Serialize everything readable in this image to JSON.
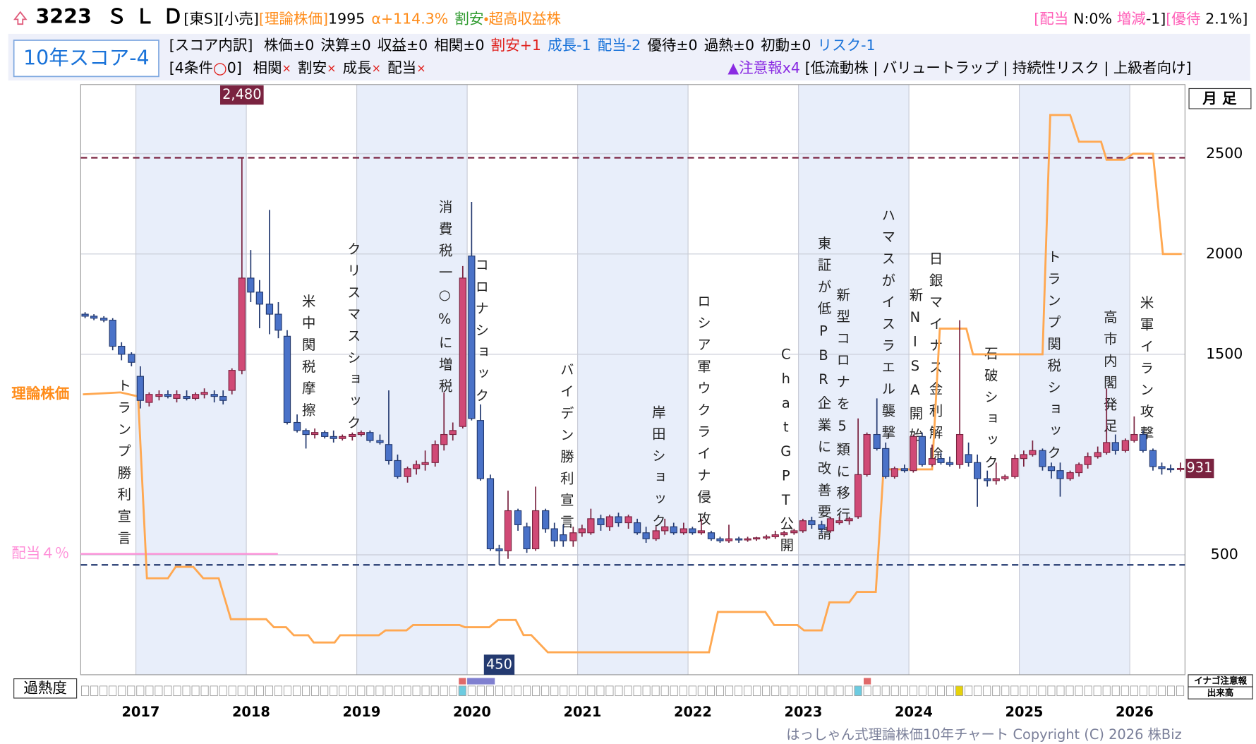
{
  "header": {
    "code": "3223",
    "name": "ＳＬＤ",
    "market": "[東S][小売]",
    "theory_label": "[理論株価]",
    "theory_price": 1995,
    "alpha": "α+114.3%",
    "tag_cheap": "割安",
    "tag_profit": "・超高収益株",
    "dividend_label": "[配当",
    "dividend_value": "N:0%",
    "change_label": "増減",
    "change_value": "-1]",
    "yutai_label": "[優待",
    "yutai_value": "2.1%]"
  },
  "score": {
    "title": "10年スコア-4",
    "breakdown_label": "[スコア内訳]",
    "items": [
      {
        "text": "株価±0",
        "color": "#000000"
      },
      {
        "text": "決算±0",
        "color": "#000000"
      },
      {
        "text": "収益±0",
        "color": "#000000"
      },
      {
        "text": "相関±0",
        "color": "#000000"
      },
      {
        "text": "割安+1",
        "color": "#e0201c"
      },
      {
        "text": "成長-1",
        "color": "#1a73d9"
      },
      {
        "text": "配当-2",
        "color": "#1a73d9"
      },
      {
        "text": "優待±0",
        "color": "#000000"
      },
      {
        "text": "過熱±0",
        "color": "#000000"
      },
      {
        "text": "初動±0",
        "color": "#000000"
      },
      {
        "text": "リスク-1",
        "color": "#1a73d9"
      }
    ]
  },
  "conditions": {
    "label": "[4条件",
    "mark": "○",
    "count": "0]",
    "items": [
      {
        "name": "相関",
        "mark": "×"
      },
      {
        "name": "割安",
        "mark": "×"
      },
      {
        "name": "成長",
        "mark": "×"
      },
      {
        "name": "配当",
        "mark": "×"
      }
    ]
  },
  "warning": {
    "label": "▲注意報x4",
    "tags": "[低流動株 | バリュートラップ | 持続性リスク | 上級者向け]"
  },
  "chart_data": {
    "type": "candlestick",
    "period_label": "月 足",
    "overheat_label": "過熱度",
    "side_labels": [
      "イナゴ注意報",
      "出来高"
    ],
    "xlim": [
      2016.5,
      2026.5
    ],
    "ylim": [
      -98,
      2845
    ],
    "xticks": [
      2017,
      2018,
      2019,
      2020,
      2021,
      2022,
      2023,
      2024,
      2025,
      2026
    ],
    "yticks": [
      500,
      1500,
      2000,
      2500
    ],
    "up_color": "#d04a76",
    "down_color": "#4a72c8",
    "high_line": {
      "value": 2480,
      "label": "2,480"
    },
    "low_line": 450,
    "dividend_line": {
      "label": "配当４％",
      "value": 505,
      "color": "#ff8ed8"
    },
    "theory": {
      "name": "理論株価",
      "color": "#ffa851",
      "x": [
        2016.52,
        2016.86,
        2017.02,
        2017.1,
        2017.29,
        2017.36,
        2017.52,
        2017.61,
        2017.75,
        2017.86,
        2018.18,
        2018.25,
        2018.36,
        2018.43,
        2018.56,
        2018.61,
        2018.8,
        2018.85,
        2019.2,
        2019.26,
        2019.45,
        2019.51,
        2019.93,
        2019.98,
        2020.2,
        2020.28,
        2020.44,
        2020.51,
        2020.58,
        2020.73,
        2022.19,
        2022.27,
        2022.7,
        2022.78,
        2022.99,
        2023.05,
        2023.21,
        2023.28,
        2023.46,
        2023.53,
        2023.7,
        2023.77,
        2024.21,
        2024.28,
        2024.52,
        2024.58,
        2025.21,
        2025.28,
        2025.46,
        2025.54,
        2025.74,
        2025.79,
        2025.95,
        2026.03,
        2026.21,
        2026.3,
        2026.47
      ],
      "values": [
        1300,
        1310,
        1290,
        383,
        383,
        440,
        440,
        383,
        383,
        179,
        179,
        139,
        139,
        99,
        99,
        63,
        63,
        99,
        99,
        123,
        123,
        150,
        150,
        139,
        139,
        175,
        175,
        100,
        100,
        14,
        14,
        215,
        215,
        150,
        150,
        123,
        123,
        263,
        263,
        315,
        315,
        926,
        926,
        1628,
        1628,
        1500,
        1500,
        2693,
        2693,
        2560,
        2560,
        2470,
        2470,
        2500,
        2500,
        2000,
        2000
      ]
    },
    "events": [
      {
        "text": "トランプ勝利宣言",
        "x": 2016.88
      },
      {
        "text": "米中関税摩擦",
        "x": 2018.55
      },
      {
        "text": "クリスマスショック",
        "x": 2018.96
      },
      {
        "text": "消費税一○%に増税",
        "x": 2019.79
      },
      {
        "text": "コロナショック",
        "x": 2020.12
      },
      {
        "text": "バイデン勝利宣言",
        "x": 2020.89
      },
      {
        "text": "岸田ショック",
        "x": 2021.72
      },
      {
        "text": "ロシア軍ウクライナ侵攻",
        "x": 2022.13
      },
      {
        "text": "ChatGPT公開",
        "x": 2022.88
      },
      {
        "text": "東証が低PBR企業に改善要請",
        "x": 2023.22
      },
      {
        "text": "新型コロナを5類に移行",
        "x": 2023.39
      },
      {
        "text": "ハマスがイスラエル襲撃",
        "x": 2023.8
      },
      {
        "text": "新NISA開始",
        "x": 2024.05
      },
      {
        "text": "日銀マイナス金利解除",
        "x": 2024.23
      },
      {
        "text": "石破ショック",
        "x": 2024.73
      },
      {
        "text": "トランプ関税ショック",
        "x": 2025.3
      },
      {
        "text": "高市内閣発足",
        "x": 2025.81
      },
      {
        "text": "米軍イラン攻撃",
        "x": 2026.14
      }
    ],
    "candles": [
      {
        "x": 2016.54,
        "o": 1700,
        "h": 1710,
        "l": 1680,
        "c": 1690
      },
      {
        "x": 2016.62,
        "o": 1690,
        "h": 1700,
        "l": 1670,
        "c": 1680
      },
      {
        "x": 2016.71,
        "o": 1680,
        "h": 1690,
        "l": 1660,
        "c": 1670
      },
      {
        "x": 2016.79,
        "o": 1670,
        "h": 1680,
        "l": 1520,
        "c": 1540
      },
      {
        "x": 2016.87,
        "o": 1540,
        "h": 1560,
        "l": 1470,
        "c": 1500
      },
      {
        "x": 2016.96,
        "o": 1500,
        "h": 1510,
        "l": 1440,
        "c": 1460
      },
      {
        "x": 2017.04,
        "o": 1390,
        "h": 1440,
        "l": 1230,
        "c": 1270
      },
      {
        "x": 2017.12,
        "o": 1260,
        "h": 1310,
        "l": 1240,
        "c": 1300
      },
      {
        "x": 2017.21,
        "o": 1290,
        "h": 1320,
        "l": 1270,
        "c": 1300
      },
      {
        "x": 2017.29,
        "o": 1300,
        "h": 1320,
        "l": 1280,
        "c": 1290
      },
      {
        "x": 2017.37,
        "o": 1280,
        "h": 1320,
        "l": 1260,
        "c": 1300
      },
      {
        "x": 2017.46,
        "o": 1290,
        "h": 1320,
        "l": 1270,
        "c": 1280
      },
      {
        "x": 2017.54,
        "o": 1280,
        "h": 1310,
        "l": 1270,
        "c": 1300
      },
      {
        "x": 2017.62,
        "o": 1300,
        "h": 1330,
        "l": 1280,
        "c": 1310
      },
      {
        "x": 2017.71,
        "o": 1300,
        "h": 1320,
        "l": 1260,
        "c": 1290
      },
      {
        "x": 2017.79,
        "o": 1290,
        "h": 1320,
        "l": 1250,
        "c": 1270
      },
      {
        "x": 2017.87,
        "o": 1320,
        "h": 1430,
        "l": 1300,
        "c": 1420
      },
      {
        "x": 2017.96,
        "o": 1420,
        "h": 2480,
        "l": 1400,
        "c": 1880
      },
      {
        "x": 2018.04,
        "o": 1880,
        "h": 2020,
        "l": 1760,
        "c": 1810
      },
      {
        "x": 2018.12,
        "o": 1810,
        "h": 1870,
        "l": 1630,
        "c": 1750
      },
      {
        "x": 2018.21,
        "o": 1750,
        "h": 2220,
        "l": 1600,
        "c": 1700
      },
      {
        "x": 2018.29,
        "o": 1700,
        "h": 1760,
        "l": 1580,
        "c": 1620
      },
      {
        "x": 2018.37,
        "o": 1590,
        "h": 1620,
        "l": 1150,
        "c": 1160
      },
      {
        "x": 2018.46,
        "o": 1160,
        "h": 1200,
        "l": 1110,
        "c": 1120
      },
      {
        "x": 2018.54,
        "o": 1120,
        "h": 1130,
        "l": 1030,
        "c": 1100
      },
      {
        "x": 2018.62,
        "o": 1100,
        "h": 1130,
        "l": 1080,
        "c": 1110
      },
      {
        "x": 2018.71,
        "o": 1110,
        "h": 1120,
        "l": 1080,
        "c": 1090
      },
      {
        "x": 2018.79,
        "o": 1090,
        "h": 1120,
        "l": 1060,
        "c": 1080
      },
      {
        "x": 2018.87,
        "o": 1080,
        "h": 1100,
        "l": 1070,
        "c": 1090
      },
      {
        "x": 2018.96,
        "o": 1090,
        "h": 1110,
        "l": 1070,
        "c": 1100
      },
      {
        "x": 2019.04,
        "o": 1100,
        "h": 1120,
        "l": 1090,
        "c": 1110
      },
      {
        "x": 2019.12,
        "o": 1110,
        "h": 1120,
        "l": 1060,
        "c": 1070
      },
      {
        "x": 2019.21,
        "o": 1070,
        "h": 1100,
        "l": 1050,
        "c": 1060
      },
      {
        "x": 2019.29,
        "o": 1050,
        "h": 1320,
        "l": 950,
        "c": 970
      },
      {
        "x": 2019.37,
        "o": 970,
        "h": 1000,
        "l": 880,
        "c": 890
      },
      {
        "x": 2019.46,
        "o": 890,
        "h": 940,
        "l": 860,
        "c": 930
      },
      {
        "x": 2019.54,
        "o": 930,
        "h": 970,
        "l": 900,
        "c": 950
      },
      {
        "x": 2019.62,
        "o": 950,
        "h": 1020,
        "l": 920,
        "c": 960
      },
      {
        "x": 2019.71,
        "o": 960,
        "h": 1070,
        "l": 940,
        "c": 1050
      },
      {
        "x": 2019.79,
        "o": 1050,
        "h": 1310,
        "l": 1020,
        "c": 1100
      },
      {
        "x": 2019.87,
        "o": 1100,
        "h": 1160,
        "l": 1070,
        "c": 1120
      },
      {
        "x": 2019.96,
        "o": 1140,
        "h": 1940,
        "l": 1130,
        "c": 1880
      },
      {
        "x": 2020.04,
        "o": 1990,
        "h": 2260,
        "l": 1170,
        "c": 1180
      },
      {
        "x": 2020.12,
        "o": 1170,
        "h": 1250,
        "l": 870,
        "c": 880
      },
      {
        "x": 2020.21,
        "o": 880,
        "h": 900,
        "l": 520,
        "c": 530
      },
      {
        "x": 2020.29,
        "o": 530,
        "h": 550,
        "l": 450,
        "c": 520
      },
      {
        "x": 2020.37,
        "o": 520,
        "h": 820,
        "l": 480,
        "c": 720
      },
      {
        "x": 2020.46,
        "o": 720,
        "h": 730,
        "l": 620,
        "c": 650
      },
      {
        "x": 2020.54,
        "o": 640,
        "h": 660,
        "l": 510,
        "c": 530
      },
      {
        "x": 2020.62,
        "o": 530,
        "h": 840,
        "l": 520,
        "c": 720
      },
      {
        "x": 2020.71,
        "o": 720,
        "h": 730,
        "l": 610,
        "c": 630
      },
      {
        "x": 2020.79,
        "o": 630,
        "h": 660,
        "l": 540,
        "c": 570
      },
      {
        "x": 2020.87,
        "o": 600,
        "h": 650,
        "l": 540,
        "c": 570
      },
      {
        "x": 2020.96,
        "o": 570,
        "h": 640,
        "l": 540,
        "c": 610
      },
      {
        "x": 2021.04,
        "o": 610,
        "h": 650,
        "l": 590,
        "c": 630
      },
      {
        "x": 2021.12,
        "o": 610,
        "h": 730,
        "l": 600,
        "c": 680
      },
      {
        "x": 2021.21,
        "o": 680,
        "h": 700,
        "l": 620,
        "c": 650
      },
      {
        "x": 2021.29,
        "o": 640,
        "h": 700,
        "l": 620,
        "c": 690
      },
      {
        "x": 2021.37,
        "o": 690,
        "h": 710,
        "l": 640,
        "c": 660
      },
      {
        "x": 2021.46,
        "o": 660,
        "h": 700,
        "l": 630,
        "c": 690
      },
      {
        "x": 2021.54,
        "o": 660,
        "h": 680,
        "l": 600,
        "c": 610
      },
      {
        "x": 2021.62,
        "o": 610,
        "h": 640,
        "l": 560,
        "c": 580
      },
      {
        "x": 2021.71,
        "o": 580,
        "h": 640,
        "l": 570,
        "c": 620
      },
      {
        "x": 2021.79,
        "o": 620,
        "h": 680,
        "l": 600,
        "c": 640
      },
      {
        "x": 2021.87,
        "o": 640,
        "h": 660,
        "l": 600,
        "c": 610
      },
      {
        "x": 2021.96,
        "o": 610,
        "h": 660,
        "l": 600,
        "c": 630
      },
      {
        "x": 2022.04,
        "o": 630,
        "h": 640,
        "l": 600,
        "c": 610
      },
      {
        "x": 2022.12,
        "o": 610,
        "h": 680,
        "l": 600,
        "c": 620
      },
      {
        "x": 2022.21,
        "o": 610,
        "h": 620,
        "l": 570,
        "c": 580
      },
      {
        "x": 2022.29,
        "o": 580,
        "h": 590,
        "l": 560,
        "c": 570
      },
      {
        "x": 2022.37,
        "o": 570,
        "h": 650,
        "l": 560,
        "c": 580
      },
      {
        "x": 2022.46,
        "o": 580,
        "h": 590,
        "l": 560,
        "c": 575
      },
      {
        "x": 2022.54,
        "o": 575,
        "h": 590,
        "l": 565,
        "c": 580
      },
      {
        "x": 2022.62,
        "o": 580,
        "h": 590,
        "l": 570,
        "c": 585
      },
      {
        "x": 2022.71,
        "o": 585,
        "h": 600,
        "l": 575,
        "c": 590
      },
      {
        "x": 2022.79,
        "o": 590,
        "h": 620,
        "l": 580,
        "c": 600
      },
      {
        "x": 2022.87,
        "o": 600,
        "h": 620,
        "l": 590,
        "c": 610
      },
      {
        "x": 2022.96,
        "o": 610,
        "h": 630,
        "l": 600,
        "c": 620
      },
      {
        "x": 2023.04,
        "o": 620,
        "h": 680,
        "l": 610,
        "c": 670
      },
      {
        "x": 2023.12,
        "o": 670,
        "h": 690,
        "l": 630,
        "c": 650
      },
      {
        "x": 2023.21,
        "o": 650,
        "h": 670,
        "l": 610,
        "c": 630
      },
      {
        "x": 2023.29,
        "o": 620,
        "h": 690,
        "l": 610,
        "c": 680
      },
      {
        "x": 2023.37,
        "o": 660,
        "h": 690,
        "l": 650,
        "c": 670
      },
      {
        "x": 2023.46,
        "o": 670,
        "h": 690,
        "l": 650,
        "c": 680
      },
      {
        "x": 2023.54,
        "o": 690,
        "h": 1180,
        "l": 680,
        "c": 900
      },
      {
        "x": 2023.62,
        "o": 900,
        "h": 1110,
        "l": 890,
        "c": 1100
      },
      {
        "x": 2023.71,
        "o": 1100,
        "h": 1280,
        "l": 1020,
        "c": 1030
      },
      {
        "x": 2023.79,
        "o": 1030,
        "h": 1060,
        "l": 880,
        "c": 890
      },
      {
        "x": 2023.87,
        "o": 890,
        "h": 940,
        "l": 880,
        "c": 930
      },
      {
        "x": 2023.96,
        "o": 930,
        "h": 950,
        "l": 910,
        "c": 920
      },
      {
        "x": 2024.04,
        "o": 920,
        "h": 1100,
        "l": 910,
        "c": 1090
      },
      {
        "x": 2024.12,
        "o": 1090,
        "h": 1110,
        "l": 940,
        "c": 950
      },
      {
        "x": 2024.21,
        "o": 950,
        "h": 1050,
        "l": 940,
        "c": 980
      },
      {
        "x": 2024.29,
        "o": 980,
        "h": 1010,
        "l": 950,
        "c": 960
      },
      {
        "x": 2024.37,
        "o": 960,
        "h": 990,
        "l": 940,
        "c": 950
      },
      {
        "x": 2024.46,
        "o": 950,
        "h": 1670,
        "l": 930,
        "c": 1100
      },
      {
        "x": 2024.54,
        "o": 1000,
        "h": 1060,
        "l": 940,
        "c": 960
      },
      {
        "x": 2024.62,
        "o": 960,
        "h": 1000,
        "l": 740,
        "c": 880
      },
      {
        "x": 2024.71,
        "o": 880,
        "h": 920,
        "l": 840,
        "c": 870
      },
      {
        "x": 2024.79,
        "o": 870,
        "h": 960,
        "l": 850,
        "c": 880
      },
      {
        "x": 2024.87,
        "o": 880,
        "h": 900,
        "l": 870,
        "c": 890
      },
      {
        "x": 2024.96,
        "o": 890,
        "h": 1000,
        "l": 880,
        "c": 980
      },
      {
        "x": 2025.04,
        "o": 980,
        "h": 1020,
        "l": 940,
        "c": 1000
      },
      {
        "x": 2025.12,
        "o": 1000,
        "h": 1070,
        "l": 990,
        "c": 1020
      },
      {
        "x": 2025.21,
        "o": 1020,
        "h": 1030,
        "l": 920,
        "c": 940
      },
      {
        "x": 2025.29,
        "o": 940,
        "h": 960,
        "l": 880,
        "c": 920
      },
      {
        "x": 2025.37,
        "o": 920,
        "h": 960,
        "l": 790,
        "c": 880
      },
      {
        "x": 2025.46,
        "o": 880,
        "h": 920,
        "l": 870,
        "c": 910
      },
      {
        "x": 2025.54,
        "o": 910,
        "h": 960,
        "l": 890,
        "c": 950
      },
      {
        "x": 2025.62,
        "o": 950,
        "h": 1010,
        "l": 930,
        "c": 990
      },
      {
        "x": 2025.71,
        "o": 990,
        "h": 1040,
        "l": 980,
        "c": 1010
      },
      {
        "x": 2025.79,
        "o": 1010,
        "h": 1330,
        "l": 1000,
        "c": 1060
      },
      {
        "x": 2025.87,
        "o": 1060,
        "h": 1100,
        "l": 1000,
        "c": 1020
      },
      {
        "x": 2025.96,
        "o": 1020,
        "h": 1080,
        "l": 1010,
        "c": 1070
      },
      {
        "x": 2026.04,
        "o": 1070,
        "h": 1190,
        "l": 1060,
        "c": 1100
      },
      {
        "x": 2026.12,
        "o": 1100,
        "h": 1120,
        "l": 1010,
        "c": 1020
      },
      {
        "x": 2026.21,
        "o": 1020,
        "h": 1030,
        "l": 920,
        "c": 940
      },
      {
        "x": 2026.29,
        "o": 940,
        "h": 960,
        "l": 900,
        "c": 930
      },
      {
        "x": 2026.37,
        "o": 930,
        "h": 950,
        "l": 910,
        "c": 925
      },
      {
        "x": 2026.46,
        "o": 925,
        "h": 960,
        "l": 915,
        "c": 931
      }
    ]
  },
  "footer": {
    "copyright": "はっしゃん式理論株価10年チャート Copyright (C) 2026 株Biz"
  }
}
